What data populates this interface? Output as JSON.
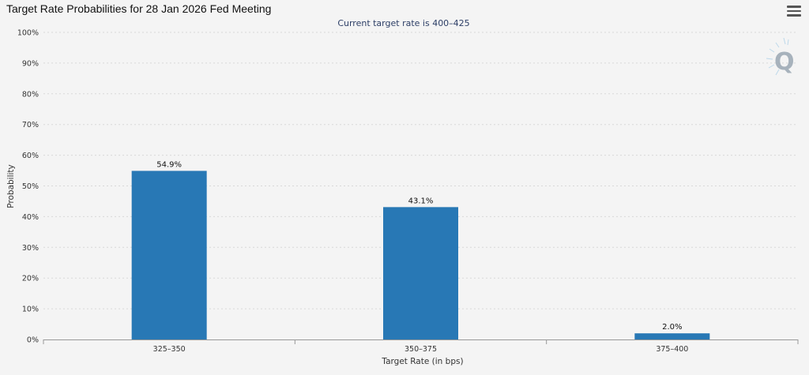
{
  "colors": {
    "bar": "#2878b5",
    "grid": "#d8d8d8",
    "axis": "#999999",
    "background": "#f4f4f4",
    "watermark": "#9aa7b3"
  },
  "icons": {
    "menu": "hamburger-menu-icon",
    "watermark": "q-logo-icon"
  },
  "chart_data": {
    "type": "bar",
    "title": "Target Rate Probabilities for 28 Jan 2026 Fed Meeting",
    "subtitle": "Current target rate is 400–425",
    "xlabel": "Target Rate (in bps)",
    "ylabel": "Probability",
    "categories": [
      "325–350",
      "350–375",
      "375–400"
    ],
    "values": [
      54.9,
      43.1,
      2.0
    ],
    "data_labels": [
      "54.9%",
      "43.1%",
      "2.0%"
    ],
    "ylim": [
      0,
      100
    ],
    "yticks": [
      0,
      10,
      20,
      30,
      40,
      50,
      60,
      70,
      80,
      90,
      100
    ],
    "ytick_labels": [
      "0%",
      "10%",
      "20%",
      "30%",
      "40%",
      "50%",
      "60%",
      "70%",
      "80%",
      "90%",
      "100%"
    ],
    "grid": true,
    "legend": "none"
  }
}
